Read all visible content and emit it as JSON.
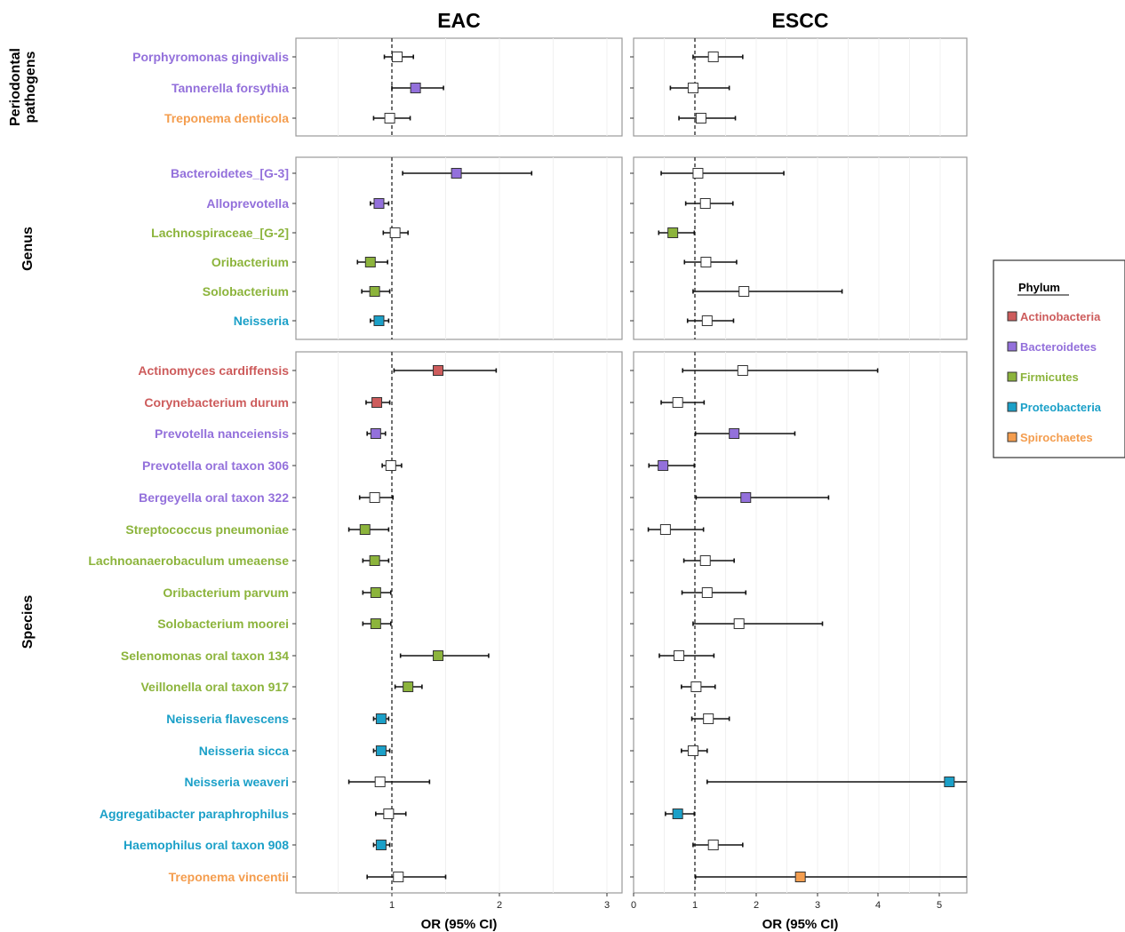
{
  "chart_data": {
    "type": "forest",
    "panels": [
      {
        "title": "EAC",
        "xlabel": "OR (95% CI)",
        "xticks": [
          "1",
          "2",
          "3"
        ],
        "xlim": [
          0.1,
          3.0
        ],
        "ref_line": 1
      },
      {
        "title": "ESCC",
        "xlabel": "OR (95% CI)",
        "xticks": [
          "0",
          "1",
          "2",
          "3",
          "4",
          "5"
        ],
        "xlim": [
          0.0,
          5.45
        ],
        "ref_line": 1
      }
    ],
    "groups": [
      "Periodontal pathogens",
      "Genus",
      "Species"
    ],
    "phyla": [
      {
        "name": "Actinobacteria",
        "color": "#cd5c5c"
      },
      {
        "name": "Bacteroidetes",
        "color": "#9370db"
      },
      {
        "name": "Firmicutes",
        "color": "#8cb43c"
      },
      {
        "name": "Proteobacteria",
        "color": "#1ba0c8"
      },
      {
        "name": "Spirochaetes",
        "color": "#f49d4e"
      }
    ],
    "legend": {
      "title": "Phylum",
      "position": "right"
    },
    "rows": [
      {
        "group": 0,
        "label": "Porphyromonas gingivalis",
        "phylum": "Bacteroidetes",
        "eac": {
          "or": 1.05,
          "lo": 0.93,
          "hi": 1.2,
          "sig": false
        },
        "escc": {
          "or": 1.3,
          "lo": 0.97,
          "hi": 1.78,
          "sig": false
        }
      },
      {
        "group": 0,
        "label": "Tannerella forsythia",
        "phylum": "Bacteroidetes",
        "eac": {
          "or": 1.22,
          "lo": 1.0,
          "hi": 1.48,
          "sig": true
        },
        "escc": {
          "or": 0.97,
          "lo": 0.6,
          "hi": 1.56,
          "sig": false
        }
      },
      {
        "group": 0,
        "label": "Treponema denticola",
        "phylum": "Spirochaetes",
        "eac": {
          "or": 0.98,
          "lo": 0.83,
          "hi": 1.17,
          "sig": false
        },
        "escc": {
          "or": 1.1,
          "lo": 0.74,
          "hi": 1.66,
          "sig": false
        }
      },
      {
        "group": 1,
        "label": "Bacteroidetes_[G-3]",
        "phylum": "Bacteroidetes",
        "eac": {
          "or": 1.6,
          "lo": 1.1,
          "hi": 2.3,
          "sig": true
        },
        "escc": {
          "or": 1.05,
          "lo": 0.45,
          "hi": 2.45,
          "sig": false
        }
      },
      {
        "group": 1,
        "label": "Alloprevotella",
        "phylum": "Bacteroidetes",
        "eac": {
          "or": 0.88,
          "lo": 0.8,
          "hi": 0.97,
          "sig": true
        },
        "escc": {
          "or": 1.17,
          "lo": 0.85,
          "hi": 1.62,
          "sig": false
        }
      },
      {
        "group": 1,
        "label": "Lachnospiraceae_[G-2]",
        "phylum": "Firmicutes",
        "eac": {
          "or": 1.03,
          "lo": 0.92,
          "hi": 1.15,
          "sig": false
        },
        "escc": {
          "or": 0.64,
          "lo": 0.41,
          "hi": 0.99,
          "sig": true
        }
      },
      {
        "group": 1,
        "label": "Oribacterium",
        "phylum": "Firmicutes",
        "eac": {
          "or": 0.8,
          "lo": 0.68,
          "hi": 0.96,
          "sig": true
        },
        "escc": {
          "or": 1.18,
          "lo": 0.83,
          "hi": 1.68,
          "sig": false
        }
      },
      {
        "group": 1,
        "label": "Solobacterium",
        "phylum": "Firmicutes",
        "eac": {
          "or": 0.84,
          "lo": 0.72,
          "hi": 0.98,
          "sig": true
        },
        "escc": {
          "or": 1.8,
          "lo": 0.97,
          "hi": 3.4,
          "sig": false
        }
      },
      {
        "group": 1,
        "label": "Neisseria",
        "phylum": "Proteobacteria",
        "eac": {
          "or": 0.88,
          "lo": 0.8,
          "hi": 0.97,
          "sig": true
        },
        "escc": {
          "or": 1.2,
          "lo": 0.88,
          "hi": 1.63,
          "sig": false
        }
      },
      {
        "group": 2,
        "label": "Actinomyces cardiffensis",
        "phylum": "Actinobacteria",
        "eac": {
          "or": 1.43,
          "lo": 1.02,
          "hi": 1.97,
          "sig": true
        },
        "escc": {
          "or": 1.78,
          "lo": 0.8,
          "hi": 3.98,
          "sig": false
        }
      },
      {
        "group": 2,
        "label": "Corynebacterium durum",
        "phylum": "Actinobacteria",
        "eac": {
          "or": 0.86,
          "lo": 0.76,
          "hi": 0.98,
          "sig": true
        },
        "escc": {
          "or": 0.72,
          "lo": 0.45,
          "hi": 1.15,
          "sig": false
        }
      },
      {
        "group": 2,
        "label": "Prevotella nanceiensis",
        "phylum": "Bacteroidetes",
        "eac": {
          "or": 0.85,
          "lo": 0.77,
          "hi": 0.94,
          "sig": true
        },
        "escc": {
          "or": 1.64,
          "lo": 1.01,
          "hi": 2.63,
          "sig": true
        }
      },
      {
        "group": 2,
        "label": "Prevotella oral taxon 306",
        "phylum": "Bacteroidetes",
        "eac": {
          "or": 0.99,
          "lo": 0.91,
          "hi": 1.09,
          "sig": false
        },
        "escc": {
          "or": 0.48,
          "lo": 0.25,
          "hi": 0.99,
          "sig": true
        }
      },
      {
        "group": 2,
        "label": "Bergeyella oral taxon 322",
        "phylum": "Bacteroidetes",
        "eac": {
          "or": 0.84,
          "lo": 0.7,
          "hi": 1.01,
          "sig": false
        },
        "escc": {
          "or": 1.83,
          "lo": 1.02,
          "hi": 3.18,
          "sig": true
        }
      },
      {
        "group": 2,
        "label": "Streptococcus pneumoniae",
        "phylum": "Firmicutes",
        "eac": {
          "or": 0.75,
          "lo": 0.6,
          "hi": 0.97,
          "sig": true
        },
        "escc": {
          "or": 0.52,
          "lo": 0.24,
          "hi": 1.14,
          "sig": false
        }
      },
      {
        "group": 2,
        "label": "Lachnoanaerobaculum umeaense",
        "phylum": "Firmicutes",
        "eac": {
          "or": 0.84,
          "lo": 0.73,
          "hi": 0.97,
          "sig": true
        },
        "escc": {
          "or": 1.17,
          "lo": 0.82,
          "hi": 1.64,
          "sig": false
        }
      },
      {
        "group": 2,
        "label": "Oribacterium parvum",
        "phylum": "Firmicutes",
        "eac": {
          "or": 0.85,
          "lo": 0.73,
          "hi": 0.99,
          "sig": true
        },
        "escc": {
          "or": 1.2,
          "lo": 0.79,
          "hi": 1.83,
          "sig": false
        }
      },
      {
        "group": 2,
        "label": "Solobacterium moorei",
        "phylum": "Firmicutes",
        "eac": {
          "or": 0.85,
          "lo": 0.73,
          "hi": 0.99,
          "sig": true
        },
        "escc": {
          "or": 1.72,
          "lo": 0.97,
          "hi": 3.08,
          "sig": false
        }
      },
      {
        "group": 2,
        "label": "Selenomonas oral taxon 134",
        "phylum": "Firmicutes",
        "eac": {
          "or": 1.43,
          "lo": 1.08,
          "hi": 1.9,
          "sig": true
        },
        "escc": {
          "or": 0.74,
          "lo": 0.42,
          "hi": 1.31,
          "sig": false
        }
      },
      {
        "group": 2,
        "label": "Veillonella oral taxon 917",
        "phylum": "Firmicutes",
        "eac": {
          "or": 1.15,
          "lo": 1.03,
          "hi": 1.28,
          "sig": true
        },
        "escc": {
          "or": 1.02,
          "lo": 0.78,
          "hi": 1.33,
          "sig": false
        }
      },
      {
        "group": 2,
        "label": "Neisseria flavescens",
        "phylum": "Proteobacteria",
        "eac": {
          "or": 0.9,
          "lo": 0.83,
          "hi": 0.97,
          "sig": true
        },
        "escc": {
          "or": 1.22,
          "lo": 0.95,
          "hi": 1.56,
          "sig": false
        }
      },
      {
        "group": 2,
        "label": "Neisseria sicca",
        "phylum": "Proteobacteria",
        "eac": {
          "or": 0.9,
          "lo": 0.83,
          "hi": 0.98,
          "sig": true
        },
        "escc": {
          "or": 0.97,
          "lo": 0.78,
          "hi": 1.2,
          "sig": false
        }
      },
      {
        "group": 2,
        "label": "Neisseria weaveri",
        "phylum": "Proteobacteria",
        "eac": {
          "or": 0.89,
          "lo": 0.6,
          "hi": 1.35,
          "sig": false
        },
        "escc": {
          "or": 5.15,
          "lo": 1.2,
          "hi": 5.45,
          "sig": true
        }
      },
      {
        "group": 2,
        "label": "Aggregatibacter paraphrophilus",
        "phylum": "Proteobacteria",
        "eac": {
          "or": 0.97,
          "lo": 0.85,
          "hi": 1.13,
          "sig": false
        },
        "escc": {
          "or": 0.72,
          "lo": 0.52,
          "hi": 0.99,
          "sig": true
        }
      },
      {
        "group": 2,
        "label": "Haemophilus oral taxon 908",
        "phylum": "Proteobacteria",
        "eac": {
          "or": 0.9,
          "lo": 0.83,
          "hi": 0.98,
          "sig": true
        },
        "escc": {
          "or": 1.3,
          "lo": 0.97,
          "hi": 1.78,
          "sig": false
        }
      },
      {
        "group": 2,
        "label": "Treponema vincentii",
        "phylum": "Spirochaetes",
        "eac": {
          "or": 1.06,
          "lo": 0.77,
          "hi": 1.5,
          "sig": false
        },
        "escc": {
          "or": 2.72,
          "lo": 1.01,
          "hi": 5.45,
          "sig": true
        }
      }
    ]
  }
}
